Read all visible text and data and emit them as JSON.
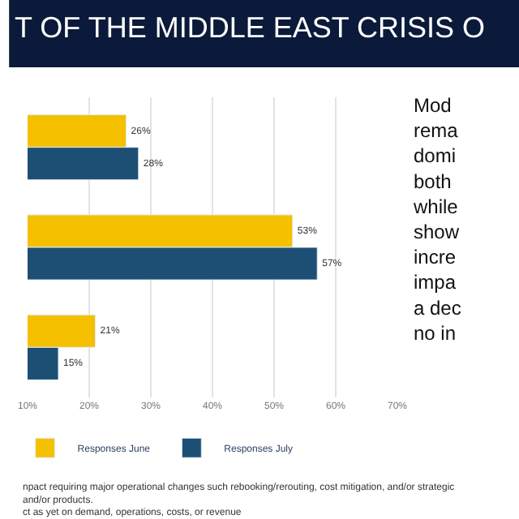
{
  "chart_data": {
    "type": "bar",
    "orientation": "horizontal",
    "title": "T OF THE MIDDLE EAST CRISIS O",
    "categories": [
      null,
      null,
      null
    ],
    "series": [
      {
        "name": "Responses June",
        "color": "#f5c000",
        "values": [
          26,
          53,
          21
        ],
        "value_labels": [
          "26%",
          "53%",
          "21%"
        ]
      },
      {
        "name": "Responses July",
        "color": "#1c4f73",
        "values": [
          28,
          57,
          15
        ],
        "value_labels": [
          "28%",
          "57%",
          "15%"
        ]
      }
    ],
    "xlim": [
      10,
      70
    ],
    "xticks": [
      {
        "value": 10,
        "label": "10%"
      },
      {
        "value": 20,
        "label": "20%"
      },
      {
        "value": 30,
        "label": "30%"
      },
      {
        "value": 40,
        "label": "40%"
      },
      {
        "value": 50,
        "label": "50%"
      },
      {
        "value": 60,
        "label": "60%"
      },
      {
        "value": 70,
        "label": "70%"
      }
    ],
    "grid": "x",
    "legend": "bottom",
    "annotations": [
      "Mod\nrema\ndomi\nboth\nwhile\nshow\nincre\nimpa\na dec\nno in",
      "npact requiring major operational changes such rebooking/rerouting, cost mitigation, and/or strategic\nand/or products.\nct as yet on demand, operations, costs, or revenue"
    ]
  }
}
